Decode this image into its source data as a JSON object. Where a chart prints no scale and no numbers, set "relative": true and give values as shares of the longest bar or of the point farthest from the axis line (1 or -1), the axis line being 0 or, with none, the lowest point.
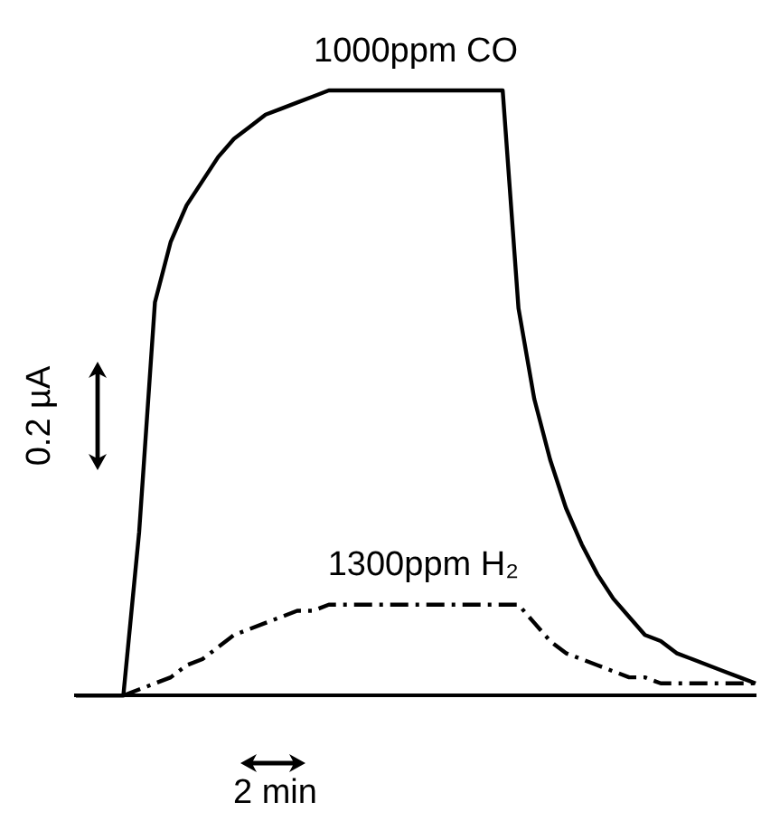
{
  "chart_data": {
    "type": "line",
    "relative": true,
    "marker": "none",
    "annotations": [
      "0.2 µA",
      "2 min"
    ],
    "categories": [
      null,
      null,
      null,
      null,
      null,
      null,
      null,
      null,
      null,
      null,
      null,
      null,
      null,
      null,
      null,
      null,
      null,
      null,
      null,
      null,
      null,
      null,
      null,
      null,
      null,
      null,
      null,
      null,
      null,
      null,
      null,
      null,
      null,
      null,
      null,
      null,
      null,
      null,
      null,
      null,
      null,
      null,
      null,
      null
    ],
    "series": [
      {
        "name": "1000ppm CO",
        "color": "#000000",
        "line_style": "solid",
        "values": [
          0,
          0,
          0,
          0,
          0.27,
          0.65,
          0.75,
          0.81,
          0.85,
          0.89,
          0.92,
          0.94,
          0.96,
          0.97,
          0.98,
          0.99,
          1,
          1,
          1,
          1,
          1,
          1,
          1,
          1,
          1,
          1,
          1,
          1,
          0.64,
          0.49,
          0.39,
          0.31,
          0.25,
          0.2,
          0.16,
          0.13,
          0.1,
          0.09,
          0.07,
          0.06,
          0.05,
          0.04,
          0.03,
          0.02
        ]
      },
      {
        "name": "1300ppm H₂",
        "color": "#000000",
        "line_style": "dashed",
        "values": [
          null,
          null,
          null,
          0,
          0.01,
          0.02,
          0.03,
          0.05,
          0.06,
          0.08,
          0.1,
          0.11,
          0.12,
          0.13,
          0.14,
          0.14,
          0.15,
          0.15,
          0.15,
          0.15,
          0.15,
          0.15,
          0.15,
          0.15,
          0.15,
          0.15,
          0.15,
          0.15,
          0.15,
          0.12,
          0.09,
          0.07,
          0.06,
          0.05,
          0.04,
          0.03,
          0.03,
          0.02,
          0.02,
          0.02,
          0.02,
          0.02,
          0.02,
          0.02
        ]
      }
    ]
  }
}
